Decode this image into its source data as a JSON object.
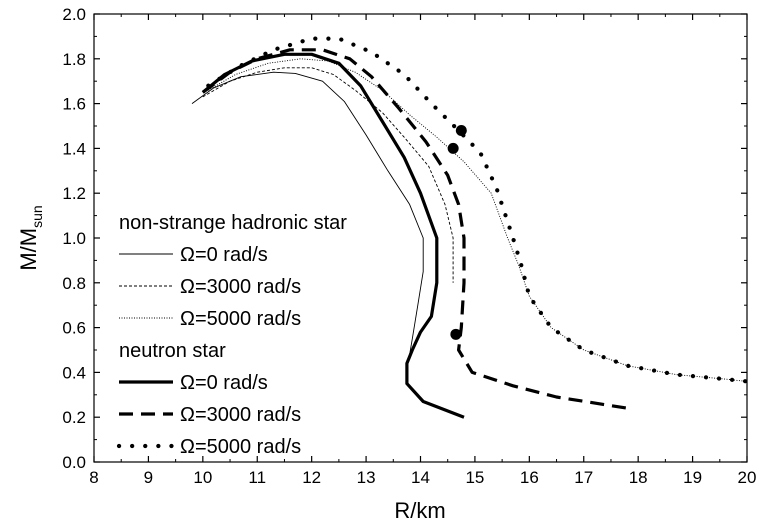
{
  "chart_data": {
    "type": "line",
    "xlabel": "R/km",
    "ylabel_main": "M/M",
    "ylabel_sub": "sun",
    "xlim": [
      8,
      20
    ],
    "ylim": [
      0.0,
      2.0
    ],
    "xticks": [
      "8",
      "9",
      "10",
      "11",
      "12",
      "13",
      "14",
      "15",
      "16",
      "17",
      "18",
      "19",
      "20"
    ],
    "yticks": [
      "0.0",
      "0.2",
      "0.4",
      "0.6",
      "0.8",
      "1.0",
      "1.2",
      "1.4",
      "1.6",
      "1.8",
      "2.0"
    ],
    "legend": [
      {
        "kind": "header",
        "label": "non-strange hadronic star"
      },
      {
        "kind": "entry",
        "label": "Ω=0 rad/s",
        "series": "h0"
      },
      {
        "kind": "entry",
        "label": "Ω=3000 rad/s",
        "series": "h3000"
      },
      {
        "kind": "entry",
        "label": "Ω=5000 rad/s",
        "series": "h5000"
      },
      {
        "kind": "header",
        "label": "neutron star"
      },
      {
        "kind": "entry",
        "label": "Ω=0 rad/s",
        "series": "n0"
      },
      {
        "kind": "entry",
        "label": "Ω=3000 rad/s",
        "series": "n3000"
      },
      {
        "kind": "entry",
        "label": "Ω=5000 rad/s",
        "series": "n5000"
      }
    ],
    "series": [
      {
        "id": "h0",
        "style": "thin-solid",
        "points": [
          [
            9.8,
            1.6
          ],
          [
            10.2,
            1.67
          ],
          [
            10.7,
            1.72
          ],
          [
            11.3,
            1.74
          ],
          [
            11.7,
            1.735
          ],
          [
            12.2,
            1.7
          ],
          [
            12.6,
            1.61
          ],
          [
            13.0,
            1.46
          ],
          [
            13.4,
            1.3
          ],
          [
            13.8,
            1.15
          ],
          [
            14.05,
            1.0
          ],
          [
            14.05,
            0.85
          ],
          [
            13.95,
            0.7
          ],
          [
            13.85,
            0.55
          ],
          [
            13.78,
            0.45
          ]
        ]
      },
      {
        "id": "h3000",
        "style": "thin-dashed",
        "points": [
          [
            10.0,
            1.63
          ],
          [
            10.5,
            1.7
          ],
          [
            11.0,
            1.74
          ],
          [
            11.5,
            1.76
          ],
          [
            12.0,
            1.76
          ],
          [
            12.4,
            1.73
          ],
          [
            12.8,
            1.66
          ],
          [
            13.3,
            1.56
          ],
          [
            13.7,
            1.45
          ],
          [
            14.15,
            1.32
          ],
          [
            14.45,
            1.15
          ],
          [
            14.6,
            1.0
          ],
          [
            14.6,
            0.8
          ]
        ]
      },
      {
        "id": "h5000",
        "style": "thin-dotted",
        "points": [
          [
            10.1,
            1.66
          ],
          [
            10.6,
            1.73
          ],
          [
            11.2,
            1.78
          ],
          [
            11.8,
            1.8
          ],
          [
            12.3,
            1.79
          ],
          [
            12.8,
            1.74
          ],
          [
            13.3,
            1.66
          ],
          [
            13.8,
            1.55
          ],
          [
            14.3,
            1.45
          ],
          [
            14.8,
            1.34
          ],
          [
            15.3,
            1.2
          ],
          [
            15.6,
            1.0
          ],
          [
            15.8,
            0.88
          ],
          [
            16.0,
            0.74
          ],
          [
            16.4,
            0.6
          ],
          [
            17.0,
            0.5
          ],
          [
            17.8,
            0.43
          ],
          [
            18.7,
            0.39
          ],
          [
            19.6,
            0.37
          ],
          [
            20.0,
            0.36
          ]
        ]
      },
      {
        "id": "n0",
        "style": "thick-solid",
        "points": [
          [
            10.0,
            1.65
          ],
          [
            10.4,
            1.73
          ],
          [
            10.9,
            1.79
          ],
          [
            11.5,
            1.82
          ],
          [
            12.0,
            1.82
          ],
          [
            12.5,
            1.78
          ],
          [
            12.9,
            1.68
          ],
          [
            13.3,
            1.52
          ],
          [
            13.7,
            1.36
          ],
          [
            14.0,
            1.2
          ],
          [
            14.3,
            1.0
          ],
          [
            14.3,
            0.8
          ],
          [
            14.2,
            0.65
          ],
          [
            14.0,
            0.58
          ],
          [
            13.85,
            0.5
          ],
          [
            13.75,
            0.44
          ],
          [
            13.75,
            0.35
          ],
          [
            14.05,
            0.27
          ],
          [
            14.8,
            0.2
          ]
        ]
      },
      {
        "id": "n3000",
        "style": "thick-dashed",
        "points": [
          [
            10.0,
            1.65
          ],
          [
            10.5,
            1.74
          ],
          [
            11.0,
            1.8
          ],
          [
            11.6,
            1.84
          ],
          [
            12.2,
            1.84
          ],
          [
            12.7,
            1.8
          ],
          [
            13.1,
            1.72
          ],
          [
            13.6,
            1.58
          ],
          [
            14.1,
            1.43
          ],
          [
            14.5,
            1.28
          ],
          [
            14.7,
            1.15
          ],
          [
            14.8,
            1.0
          ],
          [
            14.8,
            0.8
          ],
          [
            14.75,
            0.6
          ],
          [
            14.7,
            0.5
          ],
          [
            14.95,
            0.4
          ],
          [
            15.7,
            0.34
          ],
          [
            16.5,
            0.29
          ],
          [
            17.8,
            0.24
          ]
        ]
      },
      {
        "id": "n5000",
        "style": "thick-dotted",
        "points": [
          [
            10.1,
            1.68
          ],
          [
            10.7,
            1.77
          ],
          [
            11.3,
            1.84
          ],
          [
            12.0,
            1.89
          ],
          [
            12.5,
            1.89
          ],
          [
            13.1,
            1.83
          ],
          [
            13.7,
            1.73
          ],
          [
            14.2,
            1.6
          ],
          [
            14.7,
            1.48
          ],
          [
            15.1,
            1.38
          ],
          [
            15.4,
            1.22
          ],
          [
            15.7,
            1.0
          ],
          [
            15.85,
            0.88
          ],
          [
            16.0,
            0.74
          ],
          [
            16.4,
            0.6
          ],
          [
            17.0,
            0.5
          ],
          [
            17.8,
            0.43
          ],
          [
            18.7,
            0.39
          ],
          [
            19.6,
            0.37
          ],
          [
            20.0,
            0.36
          ]
        ]
      }
    ],
    "markers": [
      [
        14.75,
        1.48
      ],
      [
        14.6,
        1.4
      ],
      [
        14.65,
        0.57
      ]
    ]
  }
}
